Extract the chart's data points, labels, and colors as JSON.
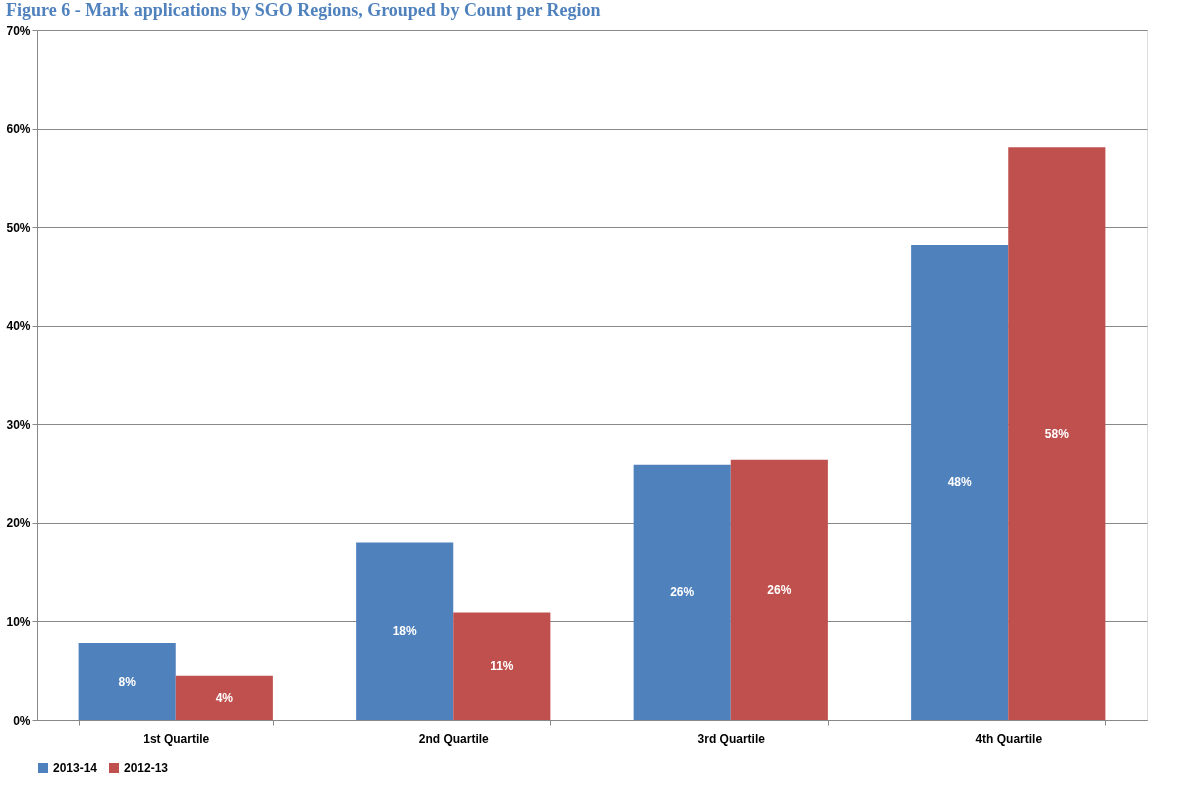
{
  "chart_data": {
    "type": "bar",
    "title": "Figure 6 - Mark applications by SGO Regions, Grouped by Count per Region",
    "categories": [
      "1st Quartile",
      "2nd Quartile",
      "3rd Quartile",
      "4th Quartile"
    ],
    "series": [
      {
        "name": "2013-14",
        "color": "#4f81bd",
        "values": [
          7.8,
          18.0,
          25.9,
          48.2
        ],
        "value_labels": [
          "8%",
          "18%",
          "26%",
          "48%"
        ]
      },
      {
        "name": "2012-13",
        "color": "#c0504d",
        "values": [
          4.5,
          10.9,
          26.4,
          58.1
        ],
        "value_labels": [
          "4%",
          "11%",
          "26%",
          "58%"
        ]
      }
    ],
    "ylim": [
      0,
      70
    ],
    "yticks": [
      {
        "value": 0,
        "label": "0%"
      },
      {
        "value": 10,
        "label": "10%"
      },
      {
        "value": 20,
        "label": "20%"
      },
      {
        "value": 30,
        "label": "30%"
      },
      {
        "value": 40,
        "label": "40%"
      },
      {
        "value": 50,
        "label": "50%"
      },
      {
        "value": 60,
        "label": "60%"
      },
      {
        "value": 70,
        "label": "70%"
      }
    ],
    "grid": "y",
    "legend": "bottom"
  }
}
